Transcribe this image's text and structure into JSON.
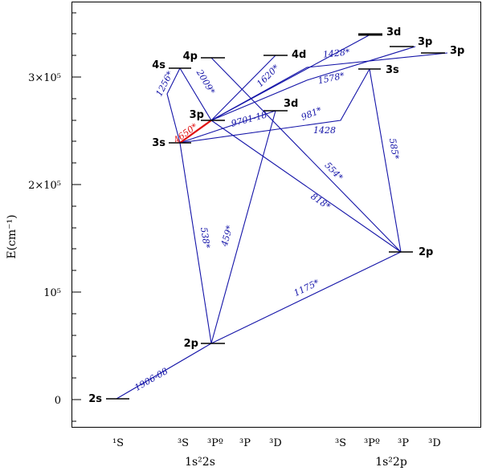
{
  "chart_data": {
    "type": "diagram",
    "title": "",
    "ylabel": "E(cm⁻¹)",
    "ylim": [
      -24000,
      370000
    ],
    "yticks": [
      {
        "value": 0,
        "label": "0"
      },
      {
        "value": 100000,
        "label": "10⁵"
      },
      {
        "value": 200000,
        "label": "2×10⁵"
      },
      {
        "value": 300000,
        "label": "3×10⁵"
      }
    ],
    "columns": [
      {
        "id": "a1S",
        "label": "¹S"
      },
      {
        "id": "a3S",
        "label": "³S"
      },
      {
        "id": "a3Po",
        "label": "³Pº"
      },
      {
        "id": "a3P",
        "label": "³P"
      },
      {
        "id": "a3D",
        "label": "³D"
      },
      {
        "id": "b3S",
        "label": "³S"
      },
      {
        "id": "b3Po",
        "label": "³Pº"
      },
      {
        "id": "b3P",
        "label": "³P"
      },
      {
        "id": "b3D",
        "label": "³D"
      }
    ],
    "configurations": [
      {
        "label": "1s²2s"
      },
      {
        "label": "1s²2p"
      }
    ],
    "levels": [
      {
        "id": "L2s",
        "label": "2s",
        "energy": 0
      },
      {
        "id": "L2p_a",
        "label": "2p",
        "energy": 52000
      },
      {
        "id": "L2p_b",
        "label": "2p",
        "energy": 137000
      },
      {
        "id": "L3s_a",
        "label": "3s",
        "energy": 238000
      },
      {
        "id": "L4s_a",
        "label": "4s",
        "energy": 309000
      },
      {
        "id": "L3p_a",
        "label": "3p",
        "energy": 260000
      },
      {
        "id": "L4p_a",
        "label": "4p",
        "energy": 318000
      },
      {
        "id": "L3d_a",
        "label": "3d",
        "energy": 270000
      },
      {
        "id": "L4d_a",
        "label": "4d",
        "energy": 321000
      },
      {
        "id": "L3s_b",
        "label": "3s",
        "energy": 308000
      },
      {
        "id": "L3d_b",
        "label": "3d",
        "energy": 341000
      },
      {
        "id": "L3p_b",
        "label": "3p",
        "energy": 329000
      },
      {
        "id": "L3p_c",
        "label": "3p",
        "energy": 323000
      }
    ],
    "transitions": [
      {
        "label": "1906-08"
      },
      {
        "label": "1175*"
      },
      {
        "label": "538*"
      },
      {
        "label": "459*"
      },
      {
        "label": "818*"
      },
      {
        "label": "554*"
      },
      {
        "label": "585*"
      },
      {
        "label": "4650*",
        "highlight": true
      },
      {
        "label": "1256*"
      },
      {
        "label": "2009*"
      },
      {
        "label": "1620*"
      },
      {
        "label": "9701-18"
      },
      {
        "label": "981*"
      },
      {
        "label": "1428"
      },
      {
        "label": "1578*"
      },
      {
        "label": "1428*"
      }
    ]
  }
}
